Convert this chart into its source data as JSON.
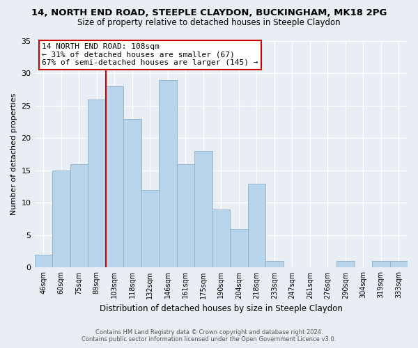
{
  "title": "14, NORTH END ROAD, STEEPLE CLAYDON, BUCKINGHAM, MK18 2PG",
  "subtitle": "Size of property relative to detached houses in Steeple Claydon",
  "xlabel": "Distribution of detached houses by size in Steeple Claydon",
  "ylabel": "Number of detached properties",
  "categories": [
    "46sqm",
    "60sqm",
    "75sqm",
    "89sqm",
    "103sqm",
    "118sqm",
    "132sqm",
    "146sqm",
    "161sqm",
    "175sqm",
    "190sqm",
    "204sqm",
    "218sqm",
    "233sqm",
    "247sqm",
    "261sqm",
    "276sqm",
    "290sqm",
    "304sqm",
    "319sqm",
    "333sqm"
  ],
  "values": [
    2,
    15,
    16,
    26,
    28,
    23,
    12,
    29,
    16,
    18,
    9,
    6,
    13,
    1,
    0,
    0,
    0,
    1,
    0,
    1,
    1
  ],
  "bar_color": "#b8d4ea",
  "bar_edge_color": "#8ab0cc",
  "vline_x_index": 4,
  "vline_color": "#cc0000",
  "annotation_lines": [
    "14 NORTH END ROAD: 108sqm",
    "← 31% of detached houses are smaller (67)",
    "67% of semi-detached houses are larger (145) →"
  ],
  "annotation_box_color": "#ffffff",
  "annotation_box_edge_color": "#cc0000",
  "ylim": [
    0,
    35
  ],
  "yticks": [
    0,
    5,
    10,
    15,
    20,
    25,
    30,
    35
  ],
  "footer_line1": "Contains HM Land Registry data © Crown copyright and database right 2024.",
  "footer_line2": "Contains public sector information licensed under the Open Government Licence v3.0.",
  "bg_color": "#e8eef4"
}
